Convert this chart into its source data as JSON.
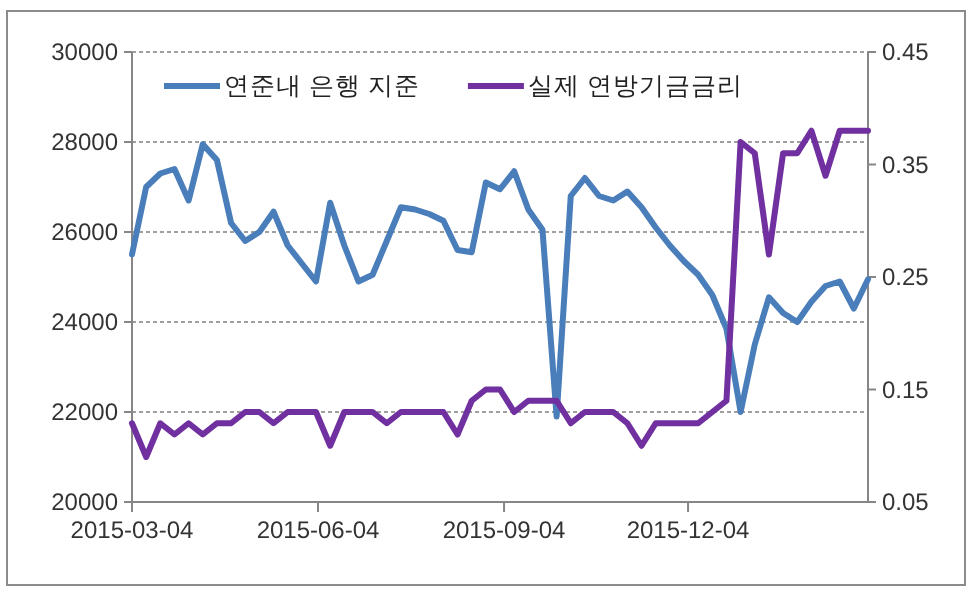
{
  "chart_data": {
    "type": "line",
    "x": [
      "2015-03-04",
      "2015-03-11",
      "2015-03-18",
      "2015-03-25",
      "2015-04-01",
      "2015-04-08",
      "2015-04-15",
      "2015-04-22",
      "2015-04-29",
      "2015-05-06",
      "2015-05-13",
      "2015-05-20",
      "2015-05-27",
      "2015-06-03",
      "2015-06-10",
      "2015-06-17",
      "2015-06-24",
      "2015-07-01",
      "2015-07-08",
      "2015-07-15",
      "2015-07-22",
      "2015-07-29",
      "2015-08-05",
      "2015-08-12",
      "2015-08-19",
      "2015-08-26",
      "2015-09-02",
      "2015-09-09",
      "2015-09-16",
      "2015-09-23",
      "2015-09-30",
      "2015-10-07",
      "2015-10-14",
      "2015-10-21",
      "2015-10-28",
      "2015-11-04",
      "2015-11-11",
      "2015-11-18",
      "2015-11-25",
      "2015-12-02",
      "2015-12-09",
      "2015-12-16",
      "2015-12-23",
      "2015-12-30",
      "2016-01-06",
      "2016-01-13",
      "2016-01-20",
      "2016-01-27",
      "2016-02-03",
      "2016-02-10",
      "2016-02-17",
      "2016-02-24",
      "2016-03-02"
    ],
    "series": [
      {
        "name": "연준내 은행 지준",
        "color": "#4a7ebb",
        "values": [
          25500,
          27000,
          27300,
          27400,
          26700,
          27950,
          27600,
          26200,
          25800,
          26000,
          26450,
          25700,
          25300,
          24900,
          26650,
          25700,
          24900,
          25050,
          25800,
          26550,
          26500,
          26400,
          26250,
          25600,
          25550,
          27100,
          26950,
          27350,
          26500,
          26050,
          21900,
          26800,
          27200,
          26800,
          26700,
          26900,
          26550,
          26100,
          25700,
          25350,
          25050,
          24600,
          23850,
          22000,
          23500,
          24550,
          24200,
          24000,
          24450,
          24800,
          24900,
          24300,
          24950
        ]
      },
      {
        "name": "실제 연방기금금리",
        "color": "#7030a0",
        "axis": "y2",
        "values": [
          0.12,
          0.09,
          0.12,
          0.11,
          0.12,
          0.11,
          0.12,
          0.12,
          0.13,
          0.13,
          0.12,
          0.13,
          0.13,
          0.13,
          0.1,
          0.13,
          0.13,
          0.13,
          0.12,
          0.13,
          0.13,
          0.13,
          0.13,
          0.11,
          0.14,
          0.15,
          0.15,
          0.13,
          0.14,
          0.14,
          0.14,
          0.12,
          0.13,
          0.13,
          0.13,
          0.12,
          0.1,
          0.12,
          0.12,
          0.12,
          0.12,
          0.13,
          0.14,
          0.37,
          0.36,
          0.27,
          0.36,
          0.36,
          0.38,
          0.34,
          0.38,
          0.38,
          0.38
        ]
      }
    ],
    "xlim": [
      "2015-03-04",
      "2016-03-02"
    ],
    "xticks": [
      "2015-03-04",
      "2015-06-04",
      "2015-09-04",
      "2015-12-04"
    ],
    "ylim": [
      20000,
      30000
    ],
    "yticks": [
      20000,
      22000,
      24000,
      26000,
      28000,
      30000
    ],
    "y2lim": [
      0.05,
      0.45
    ],
    "y2ticks": [
      {
        "value": 0.05,
        "label": "0.05"
      },
      {
        "value": 0.15,
        "label": "0.15"
      },
      {
        "value": 0.25,
        "label": "0.25"
      },
      {
        "value": 0.35,
        "label": "0.35"
      },
      {
        "value": 0.45,
        "label": "0.45"
      }
    ],
    "grid": "y",
    "legend": "top",
    "marker": "none",
    "line_style": "solid"
  }
}
